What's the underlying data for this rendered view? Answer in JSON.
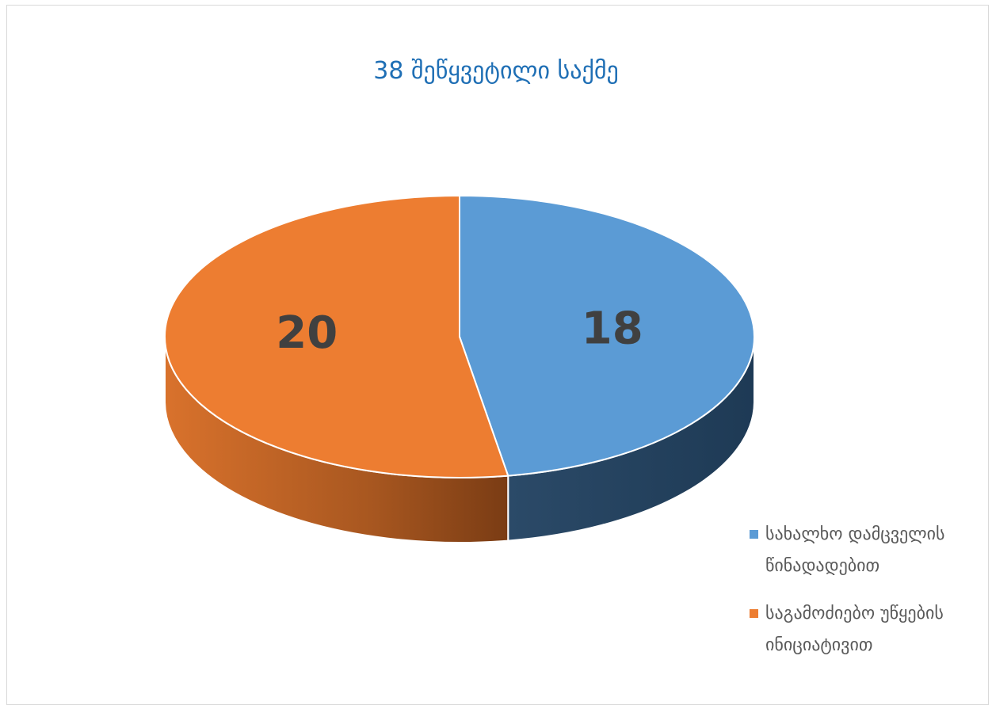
{
  "chart_data": {
    "type": "pie",
    "title": "38 შეწყვეტილი საქმე",
    "slices": [
      {
        "name": "სახალხო დამცველის წინადადებით",
        "value": 18,
        "color": "#5b9bd5",
        "side_color": "#203d58"
      },
      {
        "name": "საგამოძიებო უწყების ინიციატივით",
        "value": 20,
        "color": "#ed7d31",
        "side_color": "#9c4e1c"
      }
    ],
    "legend_position": "bottom-right"
  }
}
